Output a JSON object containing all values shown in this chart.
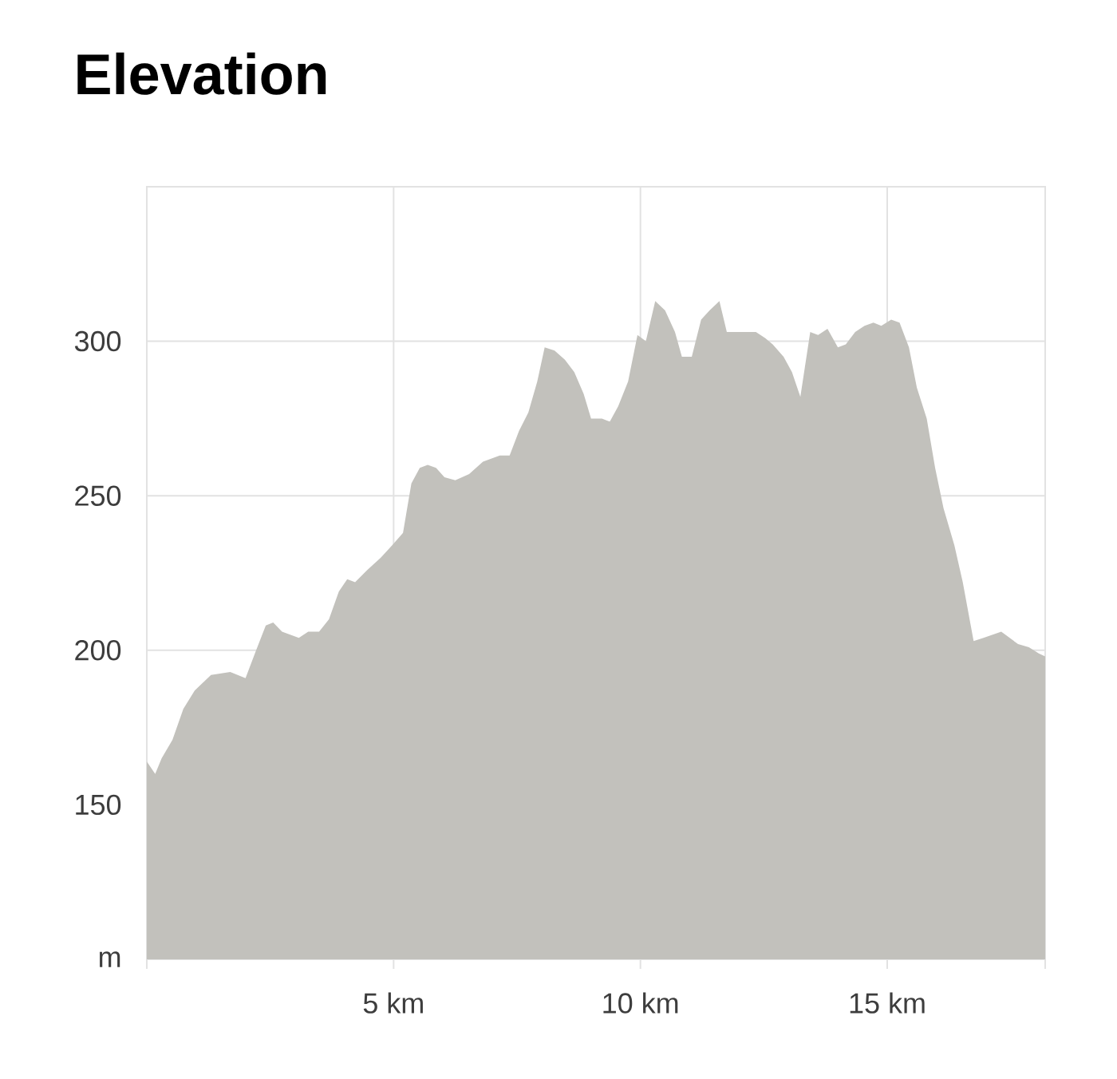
{
  "chart_data": {
    "type": "area",
    "title": "Elevation",
    "x": [
      0,
      0.17,
      0.3,
      0.52,
      0.74,
      0.97,
      1.3,
      1.69,
      2.0,
      2.19,
      2.41,
      2.56,
      2.74,
      3.08,
      3.27,
      3.49,
      3.69,
      3.89,
      4.06,
      4.22,
      4.47,
      4.74,
      4.97,
      5.19,
      5.36,
      5.53,
      5.69,
      5.86,
      6.03,
      6.25,
      6.53,
      6.81,
      7.15,
      7.35,
      7.54,
      7.73,
      7.91,
      8.06,
      8.26,
      8.47,
      8.66,
      8.85,
      9.0,
      9.22,
      9.38,
      9.55,
      9.75,
      9.94,
      10.11,
      10.3,
      10.5,
      10.7,
      10.84,
      11.04,
      11.23,
      11.4,
      11.6,
      11.75,
      12.06,
      12.34,
      12.53,
      12.68,
      12.9,
      13.07,
      13.24,
      13.44,
      13.6,
      13.79,
      14.0,
      14.16,
      14.35,
      14.54,
      14.72,
      14.88,
      15.08,
      15.25,
      15.44,
      15.6,
      15.8,
      15.97,
      16.14,
      16.36,
      16.53,
      16.75,
      16.95,
      17.31,
      17.65,
      17.87,
      18.07,
      18.2
    ],
    "values": [
      164,
      160,
      165,
      171,
      181,
      187,
      192,
      193,
      191,
      199,
      208,
      209,
      206,
      204,
      206,
      206,
      210,
      219,
      223,
      222,
      226,
      230,
      234,
      238,
      254,
      259,
      260,
      259,
      256,
      255,
      257,
      261,
      263,
      263,
      271,
      277,
      287,
      298,
      297,
      294,
      290,
      283,
      275,
      275,
      274,
      279,
      287,
      302,
      300,
      313,
      310,
      303,
      295,
      295,
      307,
      310,
      313,
      303,
      303,
      303,
      301,
      299,
      295,
      290,
      282,
      303,
      302,
      304,
      298,
      299,
      303,
      305,
      306,
      305,
      307,
      306,
      298,
      285,
      275,
      259,
      246,
      234,
      222,
      203,
      204,
      206,
      202,
      201,
      199,
      198
    ],
    "color": "#c2c1bc",
    "xlim": [
      0,
      18.2
    ],
    "ylim": [
      100,
      350
    ],
    "xticks": [
      {
        "value": 0,
        "label": null
      },
      {
        "value": 5,
        "label": "5 km"
      },
      {
        "value": 10,
        "label": "10 km"
      },
      {
        "value": 15,
        "label": "15 km"
      },
      {
        "value": 18.2,
        "label": null
      }
    ],
    "yticks": [
      {
        "value": 100,
        "label": "m"
      },
      150,
      200,
      250,
      300
    ],
    "grid": true
  }
}
